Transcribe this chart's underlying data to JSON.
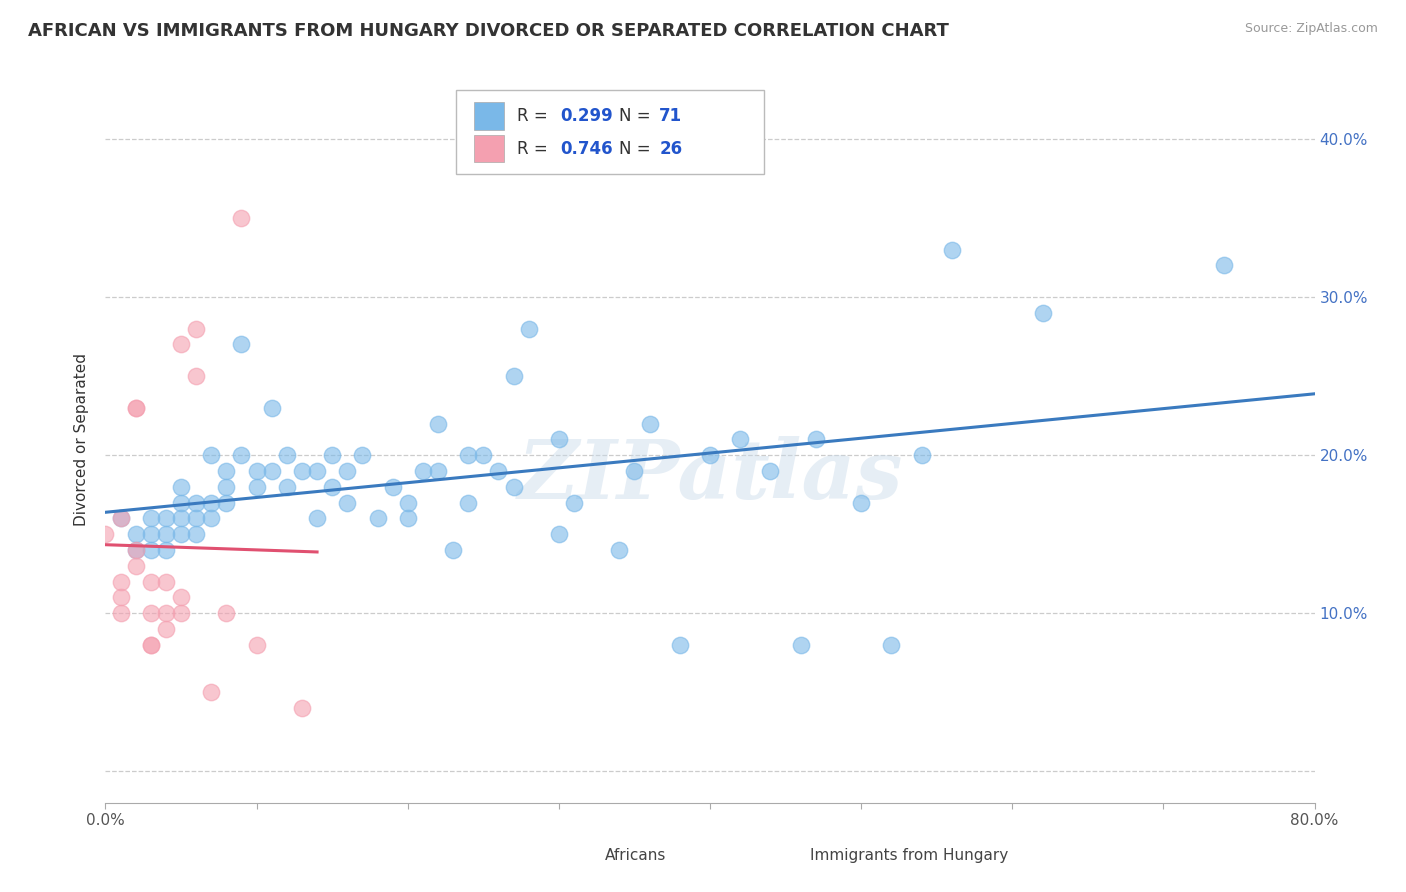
{
  "title": "AFRICAN VS IMMIGRANTS FROM HUNGARY DIVORCED OR SEPARATED CORRELATION CHART",
  "source": "Source: ZipAtlas.com",
  "ylabel": "Divorced or Separated",
  "watermark": "ZIPatlas",
  "xlim": [
    0.0,
    0.8
  ],
  "ylim": [
    -0.02,
    0.44
  ],
  "xticks": [
    0.0,
    0.1,
    0.2,
    0.3,
    0.4,
    0.5,
    0.6,
    0.7,
    0.8
  ],
  "xticklabels": [
    "0.0%",
    "",
    "",
    "",
    "",
    "",
    "",
    "",
    "80.0%"
  ],
  "yticks": [
    0.0,
    0.1,
    0.2,
    0.3,
    0.4
  ],
  "yticklabels": [
    "",
    "10.0%",
    "20.0%",
    "30.0%",
    "40.0%"
  ],
  "legend_labels": [
    "Africans",
    "Immigrants from Hungary"
  ],
  "africans_R": "0.299",
  "africans_N": "71",
  "hungary_R": "0.746",
  "hungary_N": "26",
  "africans_color": "#7ab8e8",
  "hungary_color": "#f4a0b0",
  "africans_line_color": "#3a7abf",
  "hungary_line_color": "#e05070",
  "africans_scatter": [
    [
      0.01,
      0.16
    ],
    [
      0.02,
      0.14
    ],
    [
      0.02,
      0.15
    ],
    [
      0.03,
      0.16
    ],
    [
      0.03,
      0.15
    ],
    [
      0.03,
      0.14
    ],
    [
      0.04,
      0.16
    ],
    [
      0.04,
      0.15
    ],
    [
      0.04,
      0.14
    ],
    [
      0.05,
      0.17
    ],
    [
      0.05,
      0.16
    ],
    [
      0.05,
      0.18
    ],
    [
      0.05,
      0.15
    ],
    [
      0.06,
      0.17
    ],
    [
      0.06,
      0.16
    ],
    [
      0.06,
      0.15
    ],
    [
      0.07,
      0.17
    ],
    [
      0.07,
      0.16
    ],
    [
      0.07,
      0.2
    ],
    [
      0.08,
      0.18
    ],
    [
      0.08,
      0.17
    ],
    [
      0.08,
      0.19
    ],
    [
      0.09,
      0.2
    ],
    [
      0.09,
      0.27
    ],
    [
      0.1,
      0.19
    ],
    [
      0.1,
      0.18
    ],
    [
      0.11,
      0.23
    ],
    [
      0.11,
      0.19
    ],
    [
      0.12,
      0.18
    ],
    [
      0.12,
      0.2
    ],
    [
      0.13,
      0.19
    ],
    [
      0.14,
      0.16
    ],
    [
      0.14,
      0.19
    ],
    [
      0.15,
      0.2
    ],
    [
      0.15,
      0.18
    ],
    [
      0.16,
      0.19
    ],
    [
      0.16,
      0.17
    ],
    [
      0.17,
      0.2
    ],
    [
      0.18,
      0.16
    ],
    [
      0.19,
      0.18
    ],
    [
      0.2,
      0.17
    ],
    [
      0.2,
      0.16
    ],
    [
      0.21,
      0.19
    ],
    [
      0.22,
      0.22
    ],
    [
      0.22,
      0.19
    ],
    [
      0.23,
      0.14
    ],
    [
      0.24,
      0.17
    ],
    [
      0.24,
      0.2
    ],
    [
      0.25,
      0.2
    ],
    [
      0.26,
      0.19
    ],
    [
      0.27,
      0.25
    ],
    [
      0.27,
      0.18
    ],
    [
      0.28,
      0.28
    ],
    [
      0.3,
      0.21
    ],
    [
      0.3,
      0.15
    ],
    [
      0.31,
      0.17
    ],
    [
      0.34,
      0.14
    ],
    [
      0.35,
      0.19
    ],
    [
      0.36,
      0.22
    ],
    [
      0.38,
      0.08
    ],
    [
      0.4,
      0.2
    ],
    [
      0.42,
      0.21
    ],
    [
      0.44,
      0.19
    ],
    [
      0.46,
      0.08
    ],
    [
      0.47,
      0.21
    ],
    [
      0.5,
      0.17
    ],
    [
      0.52,
      0.08
    ],
    [
      0.54,
      0.2
    ],
    [
      0.56,
      0.33
    ],
    [
      0.62,
      0.29
    ],
    [
      0.74,
      0.32
    ]
  ],
  "hungary_scatter": [
    [
      0.0,
      0.15
    ],
    [
      0.01,
      0.1
    ],
    [
      0.01,
      0.12
    ],
    [
      0.01,
      0.11
    ],
    [
      0.01,
      0.16
    ],
    [
      0.02,
      0.14
    ],
    [
      0.02,
      0.13
    ],
    [
      0.02,
      0.23
    ],
    [
      0.02,
      0.23
    ],
    [
      0.03,
      0.1
    ],
    [
      0.03,
      0.12
    ],
    [
      0.03,
      0.08
    ],
    [
      0.03,
      0.08
    ],
    [
      0.04,
      0.1
    ],
    [
      0.04,
      0.09
    ],
    [
      0.04,
      0.12
    ],
    [
      0.05,
      0.1
    ],
    [
      0.05,
      0.11
    ],
    [
      0.05,
      0.27
    ],
    [
      0.06,
      0.25
    ],
    [
      0.06,
      0.28
    ],
    [
      0.07,
      0.05
    ],
    [
      0.08,
      0.1
    ],
    [
      0.09,
      0.35
    ],
    [
      0.1,
      0.08
    ],
    [
      0.13,
      0.04
    ]
  ],
  "background_color": "#ffffff",
  "grid_color": "#cccccc",
  "title_fontsize": 13,
  "axis_fontsize": 11,
  "tick_fontsize": 11
}
